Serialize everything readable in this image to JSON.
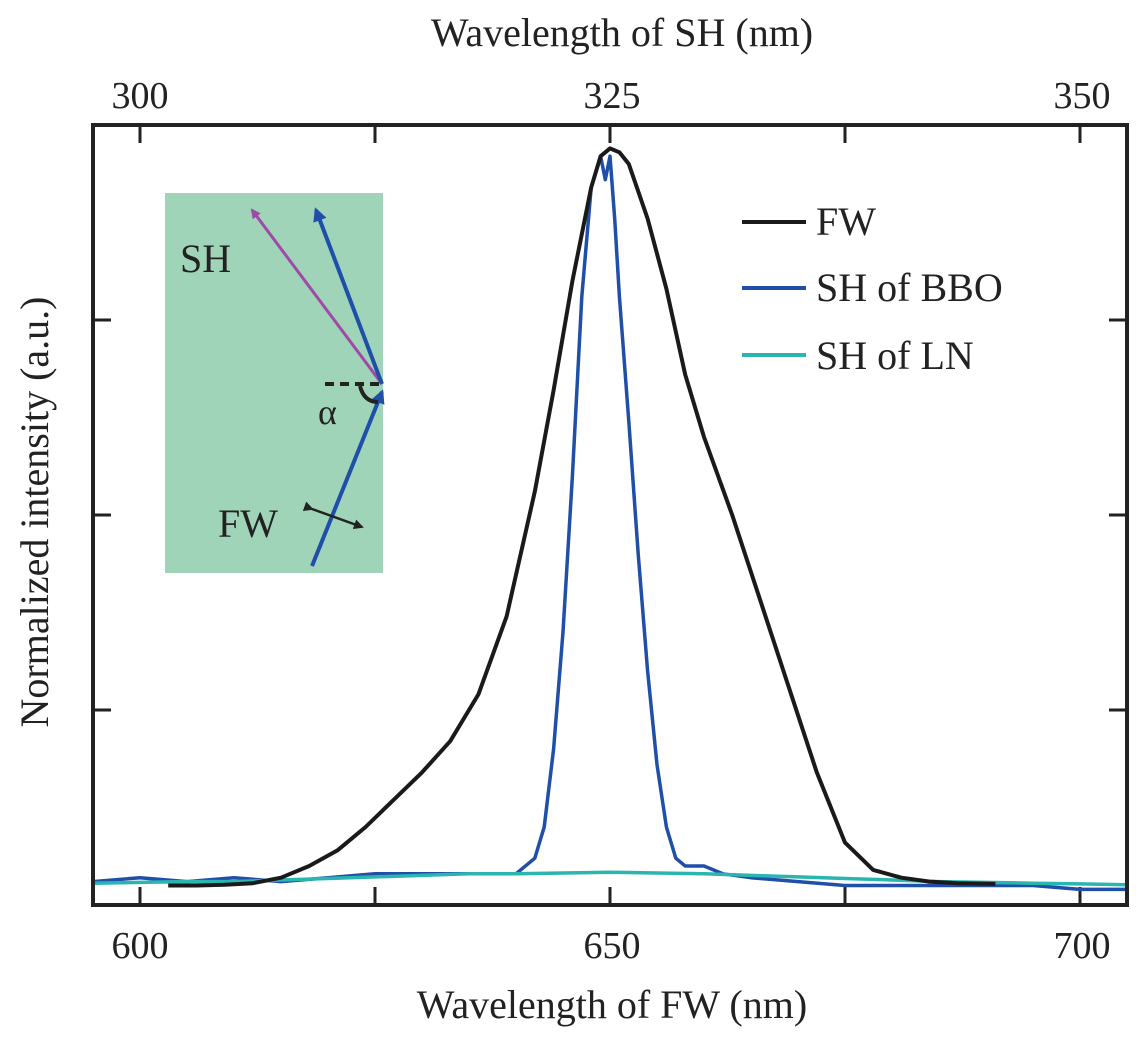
{
  "chart_data": {
    "type": "line",
    "xlabel": "Wavelength of FW (nm)",
    "xlabel_top": "Wavelength of SH (nm)",
    "ylabel": "Normalized intensity (a.u.)",
    "xlim": [
      595,
      705
    ],
    "ylim": [
      0.0,
      1.0
    ],
    "x_ticks": [
      600,
      650,
      700
    ],
    "x_ticks_top": [
      300,
      325,
      350
    ],
    "x_tick_labels": [
      "600",
      "650",
      "700"
    ],
    "x_tick_labels_top": [
      "300",
      "325",
      "350"
    ],
    "grid": false,
    "legend_position": "top-right",
    "series": [
      {
        "name": "FW",
        "color": "#1a1a1a",
        "x": [
          603,
          606,
          609,
          612,
          615,
          618,
          621,
          624,
          627,
          630,
          633,
          636,
          639,
          642,
          644,
          646,
          648,
          649,
          650,
          651,
          652,
          654,
          656,
          658,
          660,
          663,
          666,
          669,
          672,
          675,
          678,
          681,
          684,
          687,
          691
        ],
        "y": [
          0.025,
          0.025,
          0.026,
          0.028,
          0.035,
          0.05,
          0.07,
          0.1,
          0.135,
          0.17,
          0.21,
          0.27,
          0.37,
          0.53,
          0.66,
          0.8,
          0.92,
          0.96,
          0.97,
          0.965,
          0.95,
          0.88,
          0.79,
          0.68,
          0.6,
          0.5,
          0.39,
          0.28,
          0.17,
          0.08,
          0.045,
          0.035,
          0.03,
          0.028,
          0.027
        ]
      },
      {
        "name": "SH of BBO",
        "color": "#1f4fa8",
        "x": [
          595,
          600,
          605,
          610,
          615,
          620,
          625,
          630,
          635,
          640,
          642,
          643,
          644,
          645,
          646,
          647,
          648,
          649,
          649.5,
          650,
          650.5,
          651,
          652,
          653,
          654,
          655,
          656,
          657,
          658,
          660,
          662,
          665,
          670,
          675,
          680,
          685,
          690,
          695,
          700,
          705
        ],
        "y": [
          0.03,
          0.035,
          0.03,
          0.035,
          0.03,
          0.035,
          0.04,
          0.04,
          0.04,
          0.04,
          0.06,
          0.1,
          0.2,
          0.35,
          0.55,
          0.78,
          0.92,
          0.96,
          0.93,
          0.96,
          0.88,
          0.78,
          0.62,
          0.45,
          0.3,
          0.18,
          0.1,
          0.06,
          0.05,
          0.05,
          0.04,
          0.035,
          0.03,
          0.025,
          0.025,
          0.025,
          0.025,
          0.025,
          0.02,
          0.02
        ]
      },
      {
        "name": "SH of LN",
        "color": "#2bb5b0",
        "x": [
          595,
          600,
          605,
          610,
          615,
          620,
          625,
          630,
          635,
          640,
          645,
          650,
          655,
          660,
          665,
          670,
          675,
          680,
          685,
          690,
          695,
          700,
          705
        ],
        "y": [
          0.028,
          0.029,
          0.03,
          0.03,
          0.032,
          0.034,
          0.036,
          0.038,
          0.04,
          0.04,
          0.041,
          0.042,
          0.041,
          0.04,
          0.038,
          0.036,
          0.034,
          0.032,
          0.03,
          0.029,
          0.028,
          0.027,
          0.026
        ]
      }
    ],
    "inset": {
      "background": "#9fd4b8",
      "labels": [
        "SH",
        "α",
        "FW"
      ],
      "arrow_colors": {
        "sh": "#a04aa8",
        "beam": "#1f4fa8",
        "polarization": "#222222"
      }
    }
  }
}
